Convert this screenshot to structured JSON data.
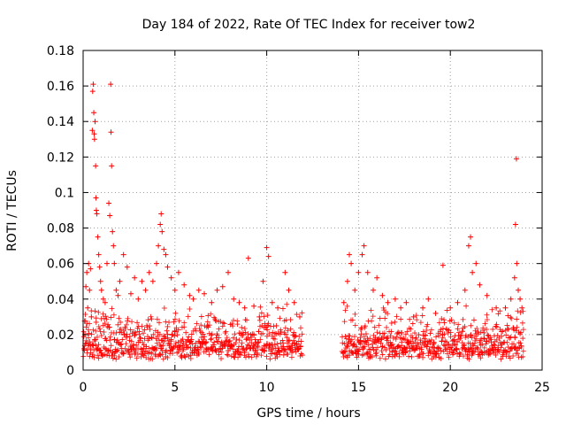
{
  "chart_data": {
    "type": "scatter",
    "title": "Day 184 of 2022, Rate Of TEC Index for receiver tow2",
    "xlabel": "GPS time / hours",
    "ylabel": "ROTI / TECUs",
    "xlim": [
      0,
      25
    ],
    "ylim": [
      0,
      0.18
    ],
    "xticks": [
      0,
      5,
      10,
      15,
      20,
      25
    ],
    "xtick_labels": [
      "0",
      "5",
      "10",
      "15",
      "20",
      "25"
    ],
    "yticks": [
      0,
      0.02,
      0.04,
      0.06,
      0.08,
      0.1,
      0.12,
      0.14,
      0.16,
      0.18
    ],
    "ytick_labels": [
      "0",
      "0.02",
      "0.04",
      "0.06",
      "0.08",
      "0.1",
      "0.12",
      "0.14",
      "0.16",
      "0.18"
    ],
    "grid": true,
    "marker": "+",
    "series": [
      {
        "name": "ROTI",
        "color": "#ff0000",
        "points": [
          [
            0.05,
            0.012
          ],
          [
            0.1,
            0.02
          ],
          [
            0.15,
            0.047
          ],
          [
            0.2,
            0.055
          ],
          [
            0.25,
            0.035
          ],
          [
            0.3,
            0.06
          ],
          [
            0.35,
            0.045
          ],
          [
            0.4,
            0.057
          ],
          [
            0.45,
            0.03
          ],
          [
            0.5,
            0.135
          ],
          [
            0.52,
            0.157
          ],
          [
            0.55,
            0.161
          ],
          [
            0.58,
            0.145
          ],
          [
            0.6,
            0.133
          ],
          [
            0.62,
            0.13
          ],
          [
            0.65,
            0.14
          ],
          [
            0.68,
            0.115
          ],
          [
            0.7,
            0.097
          ],
          [
            0.72,
            0.09
          ],
          [
            0.75,
            0.088
          ],
          [
            0.8,
            0.075
          ],
          [
            0.85,
            0.065
          ],
          [
            0.9,
            0.058
          ],
          [
            0.95,
            0.05
          ],
          [
            1.0,
            0.045
          ],
          [
            1.1,
            0.04
          ],
          [
            1.2,
            0.038
          ],
          [
            1.3,
            0.06
          ],
          [
            1.4,
            0.094
          ],
          [
            1.45,
            0.087
          ],
          [
            1.5,
            0.161
          ],
          [
            1.52,
            0.134
          ],
          [
            1.55,
            0.115
          ],
          [
            1.6,
            0.078
          ],
          [
            1.65,
            0.07
          ],
          [
            1.7,
            0.06
          ],
          [
            1.8,
            0.045
          ],
          [
            1.9,
            0.042
          ],
          [
            2.0,
            0.05
          ],
          [
            2.2,
            0.065
          ],
          [
            2.4,
            0.058
          ],
          [
            2.6,
            0.043
          ],
          [
            2.8,
            0.052
          ],
          [
            3.0,
            0.04
          ],
          [
            3.2,
            0.05
          ],
          [
            3.4,
            0.045
          ],
          [
            3.6,
            0.055
          ],
          [
            3.8,
            0.05
          ],
          [
            4.0,
            0.06
          ],
          [
            4.1,
            0.07
          ],
          [
            4.2,
            0.082
          ],
          [
            4.25,
            0.088
          ],
          [
            4.3,
            0.078
          ],
          [
            4.4,
            0.068
          ],
          [
            4.5,
            0.065
          ],
          [
            4.6,
            0.058
          ],
          [
            4.8,
            0.052
          ],
          [
            5.0,
            0.045
          ],
          [
            5.2,
            0.055
          ],
          [
            5.5,
            0.048
          ],
          [
            5.8,
            0.042
          ],
          [
            6.0,
            0.04
          ],
          [
            6.3,
            0.045
          ],
          [
            6.6,
            0.043
          ],
          [
            7.0,
            0.038
          ],
          [
            7.3,
            0.045
          ],
          [
            7.6,
            0.047
          ],
          [
            7.9,
            0.055
          ],
          [
            8.2,
            0.04
          ],
          [
            8.5,
            0.038
          ],
          [
            8.8,
            0.035
          ],
          [
            9.0,
            0.063
          ],
          [
            9.3,
            0.036
          ],
          [
            9.6,
            0.03
          ],
          [
            9.8,
            0.05
          ],
          [
            10.0,
            0.069
          ],
          [
            10.1,
            0.064
          ],
          [
            10.3,
            0.038
          ],
          [
            10.6,
            0.035
          ],
          [
            11.0,
            0.055
          ],
          [
            11.2,
            0.045
          ],
          [
            11.5,
            0.038
          ],
          [
            11.8,
            0.03
          ],
          [
            14.2,
            0.038
          ],
          [
            14.4,
            0.05
          ],
          [
            14.5,
            0.065
          ],
          [
            14.6,
            0.06
          ],
          [
            14.8,
            0.045
          ],
          [
            15.0,
            0.055
          ],
          [
            15.2,
            0.065
          ],
          [
            15.3,
            0.07
          ],
          [
            15.5,
            0.055
          ],
          [
            15.8,
            0.045
          ],
          [
            16.0,
            0.052
          ],
          [
            16.3,
            0.042
          ],
          [
            16.6,
            0.038
          ],
          [
            17.0,
            0.04
          ],
          [
            17.3,
            0.035
          ],
          [
            17.6,
            0.038
          ],
          [
            18.0,
            0.03
          ],
          [
            18.5,
            0.035
          ],
          [
            18.8,
            0.04
          ],
          [
            19.2,
            0.032
          ],
          [
            19.6,
            0.059
          ],
          [
            20.0,
            0.035
          ],
          [
            20.4,
            0.038
          ],
          [
            20.8,
            0.045
          ],
          [
            21.0,
            0.07
          ],
          [
            21.1,
            0.075
          ],
          [
            21.2,
            0.055
          ],
          [
            21.4,
            0.06
          ],
          [
            21.6,
            0.048
          ],
          [
            22.0,
            0.042
          ],
          [
            22.5,
            0.035
          ],
          [
            23.0,
            0.035
          ],
          [
            23.3,
            0.04
          ],
          [
            23.5,
            0.052
          ],
          [
            23.55,
            0.082
          ],
          [
            23.6,
            0.119
          ],
          [
            23.62,
            0.06
          ],
          [
            23.7,
            0.045
          ],
          [
            23.8,
            0.04
          ],
          [
            23.9,
            0.035
          ]
        ]
      }
    ]
  }
}
